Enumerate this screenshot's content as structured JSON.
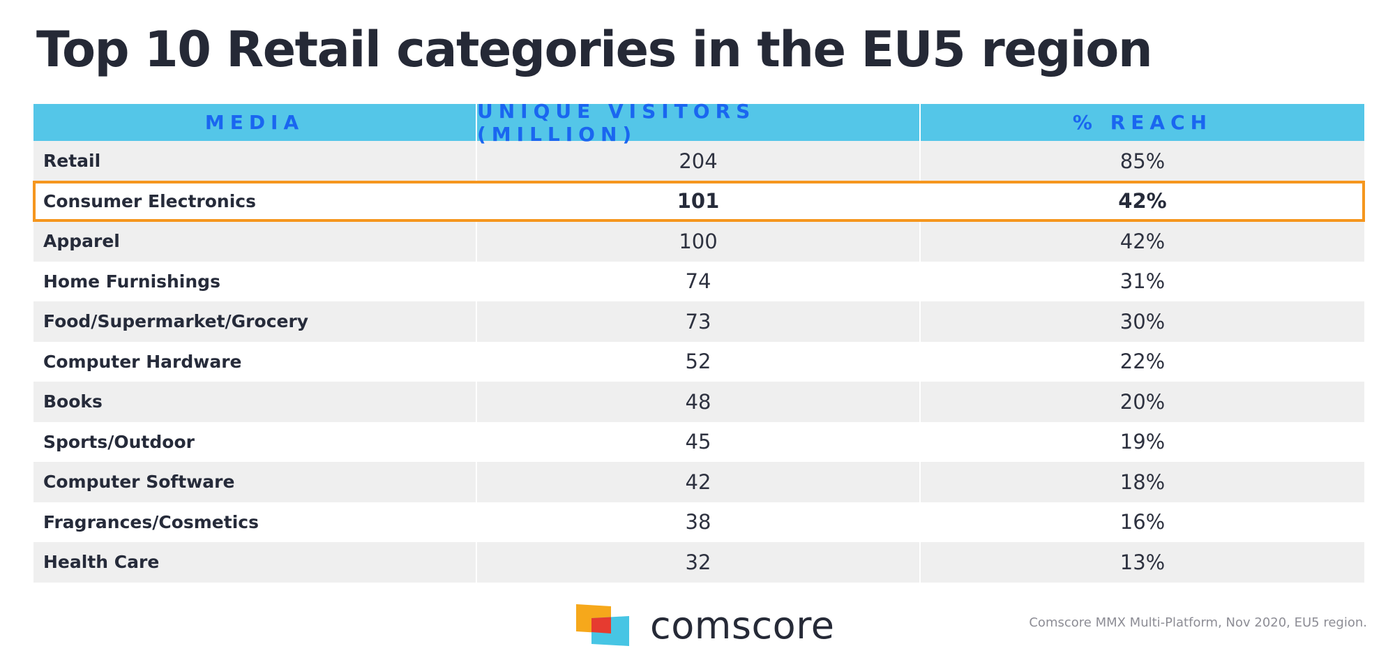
{
  "title": "Top 10 Retail categories in the EU5 region",
  "chart_data": {
    "type": "table",
    "columns": [
      "MEDIA",
      "UNIQUE VISITORS (MILLION)",
      "% REACH"
    ],
    "rows": [
      {
        "media": "Retail",
        "visitors": "204",
        "reach": "85%"
      },
      {
        "media": "Consumer Electronics",
        "visitors": "101",
        "reach": "42%",
        "highlighted": true
      },
      {
        "media": "Apparel",
        "visitors": "100",
        "reach": "42%"
      },
      {
        "media": "Home Furnishings",
        "visitors": "74",
        "reach": "31%"
      },
      {
        "media": "Food/Supermarket/Grocery",
        "visitors": "73",
        "reach": "30%"
      },
      {
        "media": "Computer Hardware",
        "visitors": "52",
        "reach": "22%"
      },
      {
        "media": "Books",
        "visitors": "48",
        "reach": "20%"
      },
      {
        "media": "Sports/Outdoor",
        "visitors": "45",
        "reach": "19%"
      },
      {
        "media": "Computer Software",
        "visitors": "42",
        "reach": "18%"
      },
      {
        "media": "Fragrances/Cosmetics",
        "visitors": "38",
        "reach": "16%"
      },
      {
        "media": "Health Care",
        "visitors": "32",
        "reach": "13%"
      }
    ]
  },
  "footer": {
    "logo_text": "comscore",
    "source": "Comscore MMX Multi-Platform, Nov 2020, EU5 region."
  },
  "colors": {
    "header_bg": "#54c6e8",
    "header_text": "#1a66f0",
    "highlight_border": "#f5961e",
    "row_alt": "#efefef",
    "title": "#252936"
  },
  "icons": {
    "logo": "comscore-logo-icon"
  }
}
